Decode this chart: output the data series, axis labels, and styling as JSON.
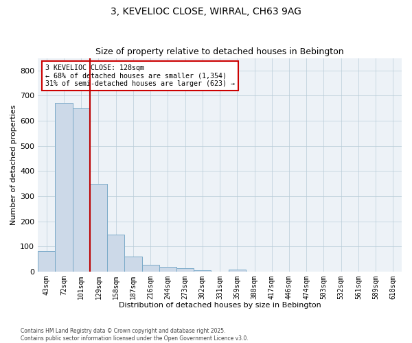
{
  "title": "3, KEVELIOC CLOSE, WIRRAL, CH63 9AG",
  "subtitle": "Size of property relative to detached houses in Bebington",
  "xlabel": "Distribution of detached houses by size in Bebington",
  "ylabel": "Number of detached properties",
  "bar_labels": [
    "43sqm",
    "72sqm",
    "101sqm",
    "129sqm",
    "158sqm",
    "187sqm",
    "216sqm",
    "244sqm",
    "273sqm",
    "302sqm",
    "331sqm",
    "359sqm",
    "388sqm",
    "417sqm",
    "446sqm",
    "474sqm",
    "503sqm",
    "532sqm",
    "561sqm",
    "589sqm",
    "618sqm"
  ],
  "bar_values": [
    82,
    670,
    650,
    350,
    148,
    60,
    27,
    17,
    13,
    5,
    0,
    7,
    0,
    0,
    0,
    0,
    0,
    0,
    0,
    0,
    0
  ],
  "bar_color": "#ccd9e8",
  "bar_edge_color": "#7aaac8",
  "vline_x": 3.0,
  "vline_color": "#bb0000",
  "annotation_text_line1": "3 KEVELIOC CLOSE: 128sqm",
  "annotation_text_line2": "← 68% of detached houses are smaller (1,354)",
  "annotation_text_line3": "31% of semi-detached houses are larger (623) →",
  "annotation_box_color": "#cc0000",
  "ylim": [
    0,
    850
  ],
  "yticks": [
    0,
    100,
    200,
    300,
    400,
    500,
    600,
    700,
    800
  ],
  "grid_color": "#b8ccd8",
  "background_color": "#edf2f7",
  "title_fontsize": 10,
  "subtitle_fontsize": 9,
  "tick_fontsize": 7,
  "axis_label_fontsize": 8,
  "footer_line1": "Contains HM Land Registry data © Crown copyright and database right 2025.",
  "footer_line2": "Contains public sector information licensed under the Open Government Licence v3.0."
}
